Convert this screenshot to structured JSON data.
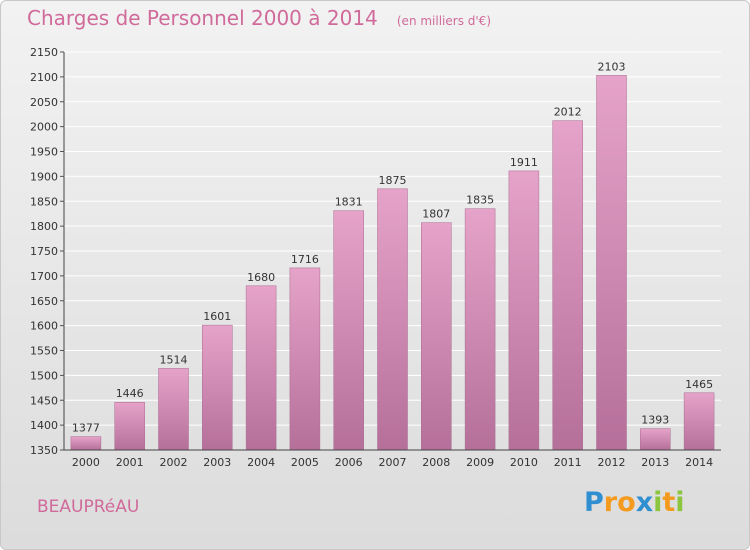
{
  "title": "Charges de Personnel 2000 à 2014",
  "subtitle": "(en milliers d'€)",
  "place": "BEAUPRéAU",
  "logo_text": "Proxiti",
  "colors": {
    "title": "#d06a9a",
    "bar_light": "#e6a3c9",
    "bar_dark": "#b5709a",
    "grid": "#ffffff",
    "logo_blue": "#2f8fd1",
    "logo_orange": "#f49a1f",
    "logo_green": "#8cc63f"
  },
  "chart_data": {
    "type": "bar",
    "categories": [
      "2000",
      "2001",
      "2002",
      "2003",
      "2004",
      "2005",
      "2006",
      "2007",
      "2008",
      "2009",
      "2010",
      "2011",
      "2012",
      "2013",
      "2014"
    ],
    "values": [
      1377,
      1446,
      1514,
      1601,
      1680,
      1716,
      1831,
      1875,
      1807,
      1835,
      1911,
      2012,
      2103,
      1393,
      1465
    ],
    "ylim": [
      1350,
      2150
    ],
    "yticks": [
      1350,
      1400,
      1450,
      1500,
      1550,
      1600,
      1650,
      1700,
      1750,
      1800,
      1850,
      1900,
      1950,
      2000,
      2050,
      2100,
      2150
    ],
    "grid": true,
    "data_labels": true,
    "title": "Charges de Personnel 2000 à 2014",
    "subtitle": "(en milliers d'€)"
  }
}
